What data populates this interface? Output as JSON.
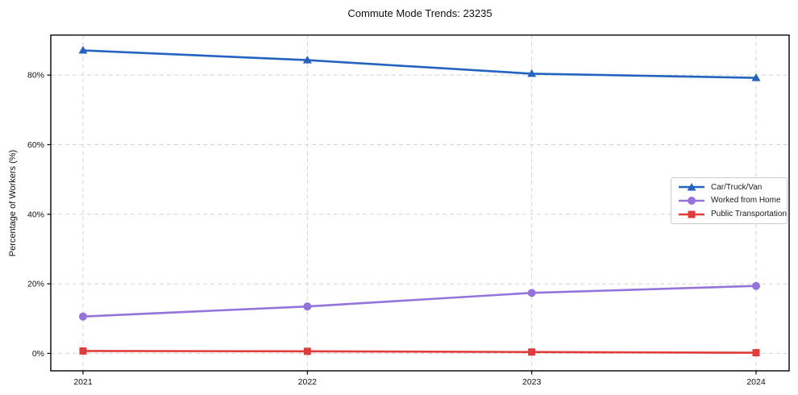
{
  "chart_data": {
    "type": "line",
    "title": "Commute Mode Trends: 23235",
    "xlabel": "",
    "ylabel": "Percentage of Workers (%)",
    "x": [
      2021,
      2022,
      2023,
      2024
    ],
    "x_tick_labels": [
      "2021",
      "2022",
      "2023",
      "2024"
    ],
    "y_ticks": [
      0,
      20,
      40,
      60,
      80
    ],
    "y_tick_labels": [
      "0%",
      "20%",
      "40%",
      "60%",
      "80%"
    ],
    "ylim": [
      -5,
      91.5
    ],
    "grid": true,
    "grid_style": "dashed",
    "legend_position": "center right",
    "series": [
      {
        "name": "Car/Truck/Van",
        "color": "#2463C0",
        "marker": "triangle",
        "values": [
          87.1,
          84.3,
          80.4,
          79.2
        ]
      },
      {
        "name": "Worked from Home",
        "color": "#9473DB",
        "marker": "circle",
        "values": [
          10.6,
          13.5,
          17.4,
          19.4
        ]
      },
      {
        "name": "Public Transportation",
        "color": "#E13B3C",
        "marker": "square",
        "values": [
          0.7,
          0.6,
          0.4,
          0.2
        ]
      }
    ]
  },
  "colors": {
    "grid": "#d3d3d3",
    "spine": "#000000",
    "tick_text": "#111111",
    "background": "#ffffff"
  }
}
